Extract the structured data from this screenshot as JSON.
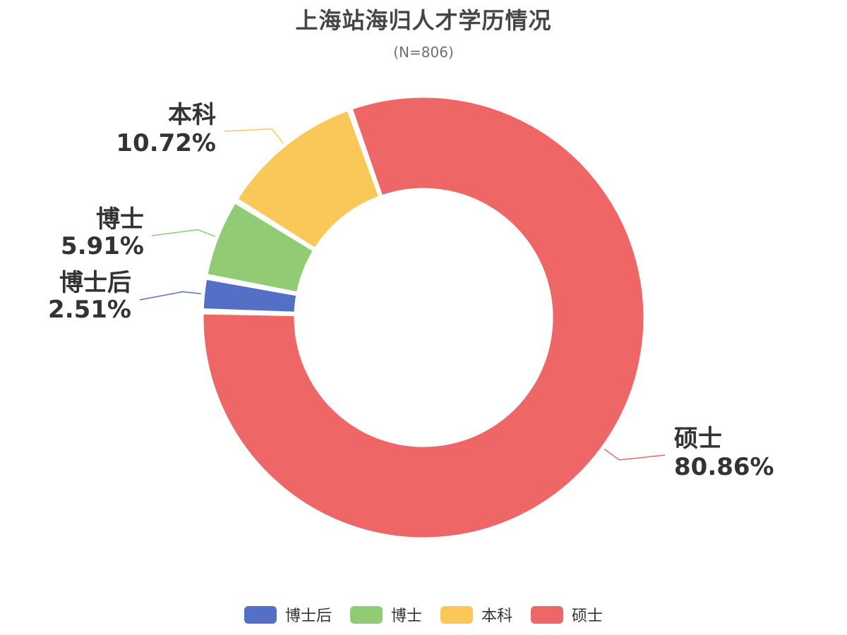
{
  "chart_data": {
    "type": "pie",
    "donut": true,
    "title": "上海站海归人才学历情况",
    "subtitle": "(N=806)",
    "categories": [
      "博士后",
      "博士",
      "本科",
      "硕士"
    ],
    "values": [
      2.51,
      5.91,
      10.72,
      80.86
    ],
    "value_labels": [
      "2.51%",
      "5.91%",
      "10.72%",
      "80.86%"
    ],
    "colors": [
      "#5470c6",
      "#91cc75",
      "#fac858",
      "#ee6666"
    ],
    "legend_position": "bottom"
  }
}
